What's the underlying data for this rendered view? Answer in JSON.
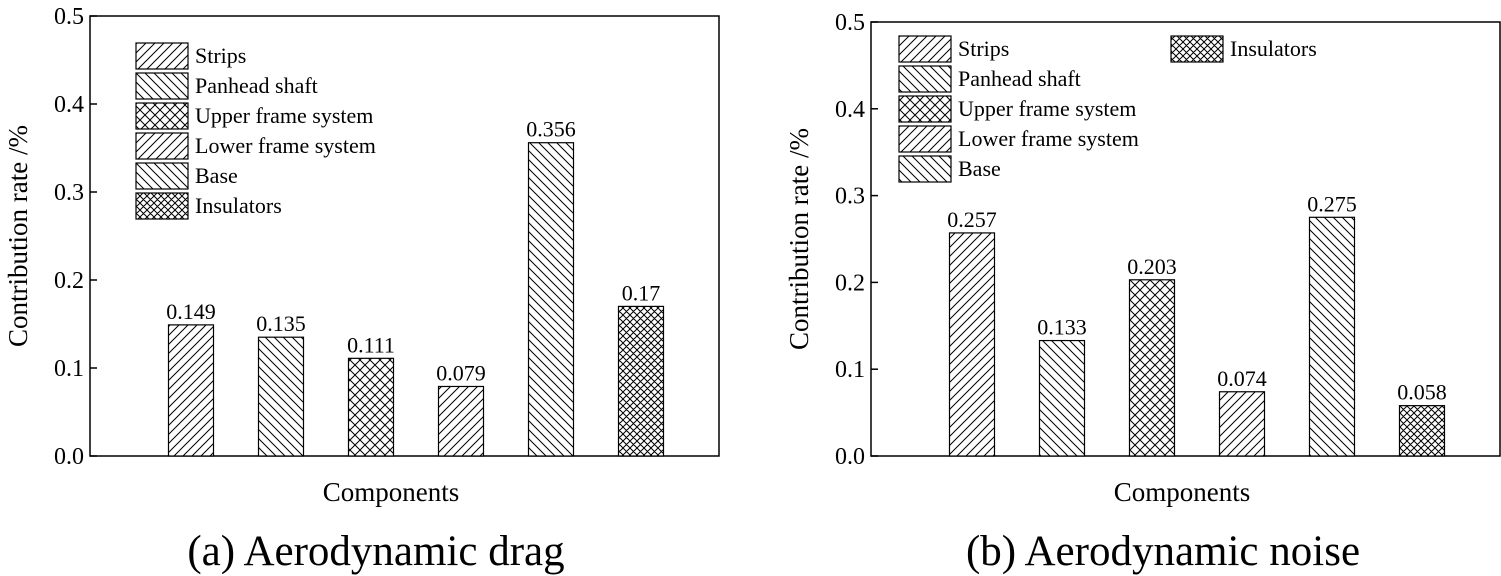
{
  "chart_data": [
    {
      "type": "bar",
      "caption": "(a) Aerodynamic drag",
      "xlabel": "Components",
      "ylabel": "Contribution rate /%",
      "ylim": [
        0,
        0.5
      ],
      "yticks": [
        "0.0",
        "0.1",
        "0.2",
        "0.3",
        "0.4",
        "0.5"
      ],
      "categories": [
        "Strips",
        "Panhead shaft",
        "Upper frame system",
        "Lower frame system",
        "Base",
        "Insulators"
      ],
      "values": [
        0.149,
        0.135,
        0.111,
        0.079,
        0.356,
        0.17
      ],
      "value_labels": [
        "0.149",
        "0.135",
        "0.111",
        "0.079",
        "0.356",
        "0.17"
      ],
      "legend_position": "top-left",
      "legend_columns": 1
    },
    {
      "type": "bar",
      "caption": "(b) Aerodynamic noise",
      "xlabel": "Components",
      "ylabel": "Contribution rate /%",
      "ylim": [
        0,
        0.5
      ],
      "yticks": [
        "0.0",
        "0.1",
        "0.2",
        "0.3",
        "0.4",
        "0.5"
      ],
      "categories": [
        "Strips",
        "Panhead shaft",
        "Upper frame system",
        "Lower frame system",
        "Base",
        "Insulators"
      ],
      "values": [
        0.257,
        0.133,
        0.203,
        0.074,
        0.275,
        0.058
      ],
      "value_labels": [
        "0.257",
        "0.133",
        "0.203",
        "0.074",
        "0.275",
        "0.058"
      ],
      "legend_position": "top-left",
      "legend_columns": 2
    }
  ],
  "patterns": [
    "diag-fwd",
    "diag-back",
    "crosshatch",
    "diag-fwd",
    "diag-back",
    "crosshatch-dense"
  ],
  "colors": {
    "stroke": "#000000",
    "fill": "#ffffff"
  }
}
